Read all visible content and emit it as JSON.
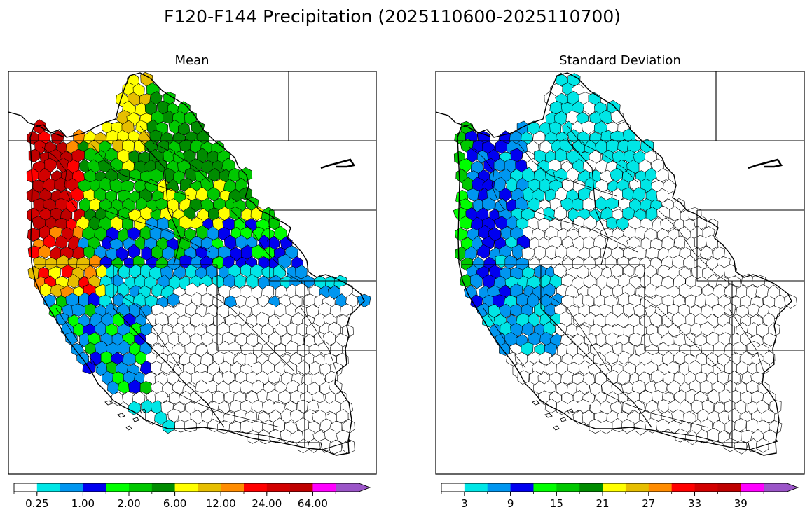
{
  "figure": {
    "title": "F120-F144 Precipitation (2025110600-2025110700)"
  },
  "chart_data": [
    {
      "type": "heatmap",
      "title": "Mean",
      "region": "Western United States river basins",
      "colorbar": {
        "bins": 15,
        "colors": [
          "#ffffff",
          "#00e6e6",
          "#0096f0",
          "#0000f0",
          "#00ff00",
          "#00c800",
          "#008c00",
          "#ffff00",
          "#e6be00",
          "#ff8c00",
          "#ff0000",
          "#d20000",
          "#be0000",
          "#ff00ff",
          "#9b55c8"
        ],
        "tick_labels": [
          "0.25",
          "1.00",
          "2.00",
          "6.00",
          "12.00",
          "24.00",
          "64.00"
        ],
        "tick_bins": [
          1,
          3,
          5,
          7,
          9,
          11,
          13
        ],
        "extend": "max"
      },
      "patterns": [
        {
          "area": "coastal Washington and Oregon",
          "color": "#be0000"
        },
        {
          "area": "northern Idaho and western Montana",
          "color": "#008c00"
        },
        {
          "area": "interior Washington and Oregon",
          "color": "#00c800"
        },
        {
          "area": "central Idaho and Wyoming",
          "color": "#0000f0"
        },
        {
          "area": "northern California",
          "color": "#0096f0"
        },
        {
          "area": "Great Basin edge",
          "color": "#00e6e6"
        },
        {
          "area": "Southwest",
          "color": "#ffffff"
        }
      ]
    },
    {
      "type": "heatmap",
      "title": "Standard Deviation",
      "region": "Western United States river basins",
      "colorbar": {
        "bins": 15,
        "colors": [
          "#ffffff",
          "#00e6e6",
          "#0096f0",
          "#0000f0",
          "#00ff00",
          "#00c800",
          "#008c00",
          "#ffff00",
          "#e6be00",
          "#ff8c00",
          "#ff0000",
          "#d20000",
          "#be0000",
          "#ff00ff",
          "#9b55c8"
        ],
        "tick_labels": [
          "3",
          "9",
          "15",
          "21",
          "27",
          "33",
          "39"
        ],
        "tick_bins": [
          1,
          3,
          5,
          7,
          9,
          11,
          13
        ],
        "extend": "max"
      },
      "patterns": [
        {
          "area": "coastal Washington and Oregon",
          "color": "#0000f0"
        },
        {
          "area": "Olympic and Oregon coast",
          "color": "#00c800"
        },
        {
          "area": "northern California",
          "color": "#0096f0"
        },
        {
          "area": "Idaho and Montana",
          "color": "#00e6e6"
        },
        {
          "area": "Southwest",
          "color": "#ffffff"
        }
      ]
    }
  ]
}
